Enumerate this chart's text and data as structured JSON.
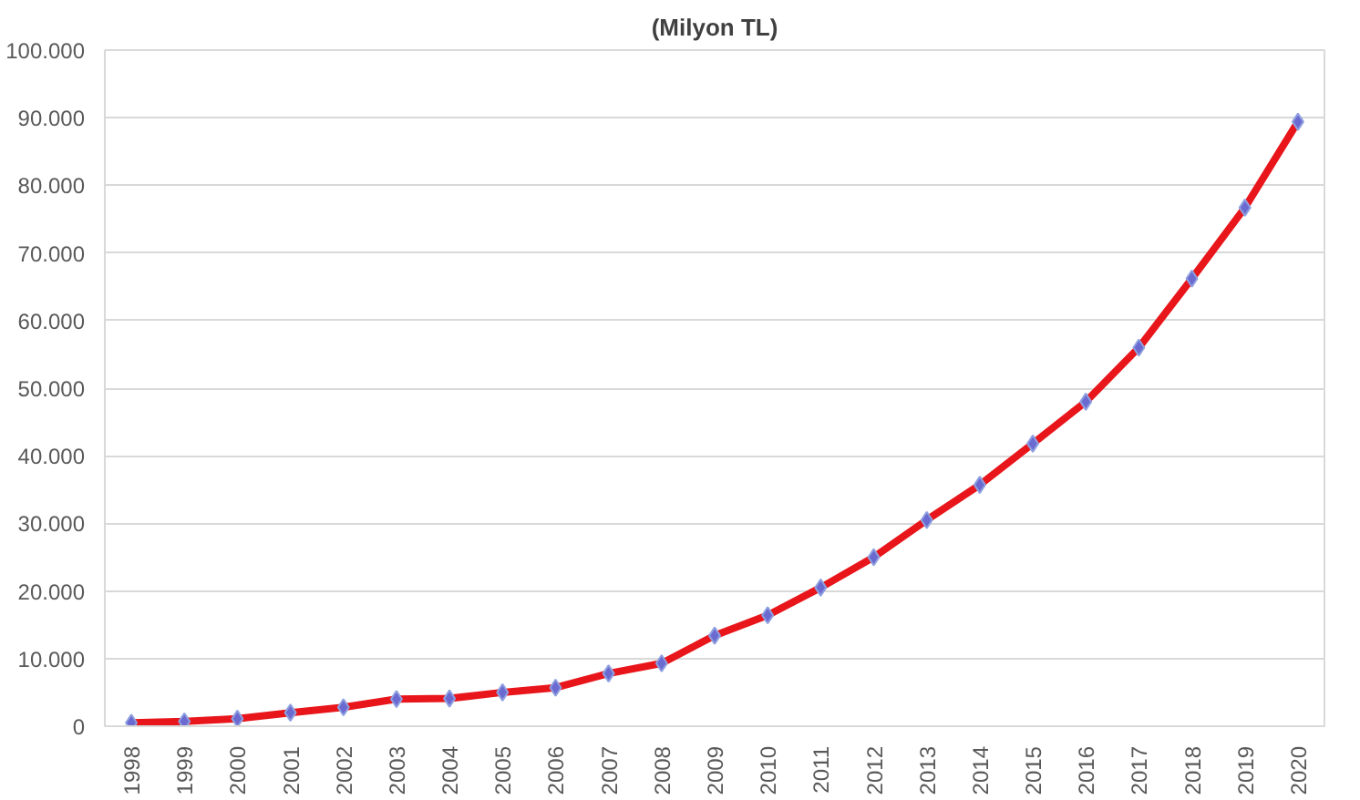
{
  "chart_data": {
    "type": "line",
    "title": "(Milyon TL)",
    "categories": [
      "1998",
      "1999",
      "2000",
      "2001",
      "2002",
      "2003",
      "2004",
      "2005",
      "2006",
      "2007",
      "2008",
      "2009",
      "2010",
      "2011",
      "2012",
      "2013",
      "2014",
      "2015",
      "2016",
      "2017",
      "2018",
      "2019",
      "2020"
    ],
    "series": [
      {
        "color": "#e8161b",
        "values": [
          500,
          700,
          1100,
          2000,
          2800,
          4000,
          4100,
          5000,
          5700,
          7800,
          9300,
          13400,
          16400,
          20500,
          25000,
          30500,
          35700,
          41800,
          48000,
          56000,
          66200,
          76700,
          89400
        ]
      }
    ],
    "ylim": [
      0,
      100000
    ],
    "yticks": [
      {
        "value": 0,
        "label": "0"
      },
      {
        "value": 10000,
        "label": "10.000"
      },
      {
        "value": 20000,
        "label": "20.000"
      },
      {
        "value": 30000,
        "label": "30.000"
      },
      {
        "value": 40000,
        "label": "40.000"
      },
      {
        "value": 50000,
        "label": "50.000"
      },
      {
        "value": 60000,
        "label": "60.000"
      },
      {
        "value": 70000,
        "label": "70.000"
      },
      {
        "value": 80000,
        "label": "80.000"
      },
      {
        "value": 90000,
        "label": "90.000"
      },
      {
        "value": 100000,
        "label": "100.000"
      }
    ],
    "grid": "y",
    "marker": "diamond",
    "line_style": "solid"
  }
}
